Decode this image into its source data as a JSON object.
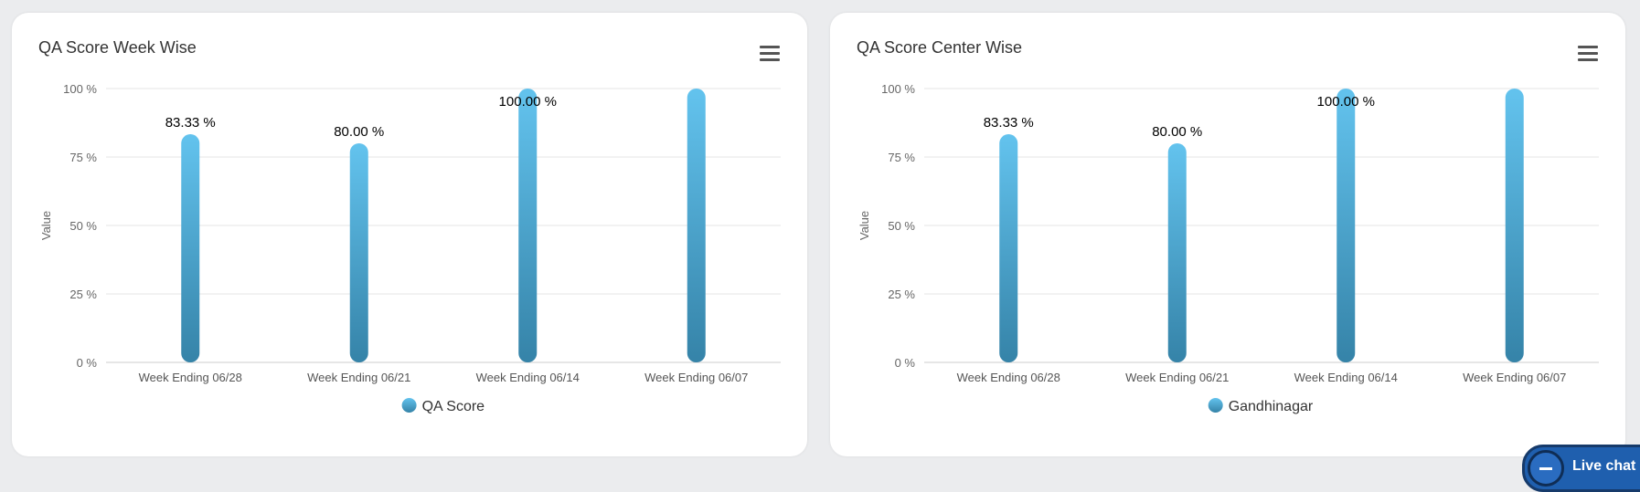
{
  "charts": [
    {
      "title": "QA Score Week Wise",
      "menu_icon": "hamburger-menu-icon"
    },
    {
      "title": "QA Score Center Wise",
      "menu_icon": "hamburger-menu-icon"
    }
  ],
  "chart_data": [
    {
      "type": "bar",
      "title": "QA Score Week Wise",
      "categories": [
        "Week Ending 06/28",
        "Week Ending 06/21",
        "Week Ending 06/14",
        "Week Ending 06/07"
      ],
      "series": [
        {
          "name": "QA Score",
          "values": [
            83.33,
            80.0,
            100.0,
            100.0
          ],
          "labels": [
            "83.33 %",
            "80.00 %",
            "100.00 %",
            ""
          ]
        }
      ],
      "xlabel": "",
      "ylabel": "Value",
      "ylim": [
        0,
        100
      ],
      "yticks": [
        "0 %",
        "25 %",
        "50 %",
        "75 %",
        "100 %"
      ],
      "grid": true,
      "legend": "bottom-center",
      "colors": {
        "bar_top": "#63c3ee",
        "bar_bottom": "#3583a8",
        "grid": "#e6e6e6",
        "axis": "#cccccc"
      }
    },
    {
      "type": "bar",
      "title": "QA Score Center Wise",
      "categories": [
        "Week Ending 06/28",
        "Week Ending 06/21",
        "Week Ending 06/14",
        "Week Ending 06/07"
      ],
      "series": [
        {
          "name": "Gandhinagar",
          "values": [
            83.33,
            80.0,
            100.0,
            100.0
          ],
          "labels": [
            "83.33 %",
            "80.00 %",
            "100.00 %",
            ""
          ]
        }
      ],
      "xlabel": "",
      "ylabel": "Value",
      "ylim": [
        0,
        100
      ],
      "yticks": [
        "0 %",
        "25 %",
        "50 %",
        "75 %",
        "100 %"
      ],
      "grid": true,
      "legend": "bottom-center",
      "colors": {
        "bar_top": "#63c3ee",
        "bar_bottom": "#3583a8",
        "grid": "#e6e6e6",
        "axis": "#cccccc"
      }
    }
  ],
  "livechat": {
    "label": "Live chat",
    "icon": "chat-icon"
  }
}
